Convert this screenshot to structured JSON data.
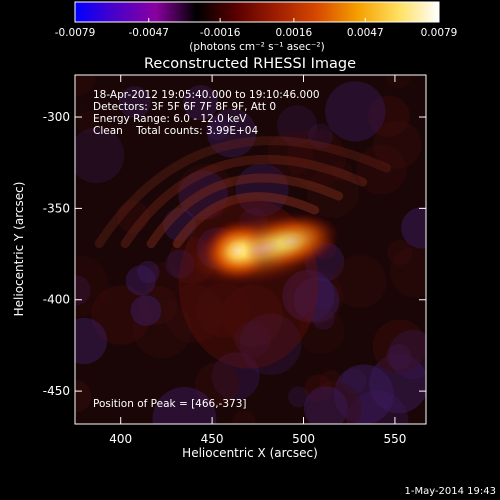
{
  "colorbar": {
    "ticks": [
      "-0.0079",
      "-0.0047",
      "-0.0016",
      "0.0016",
      "0.0047",
      "0.0079"
    ],
    "tick_values": [
      -0.0079,
      -0.0047,
      -0.0016,
      0.0016,
      0.0047,
      0.0079
    ],
    "range": [
      -0.0079,
      0.0079
    ],
    "unit_label": "(photons cm⁻² s⁻¹ asec⁻²)",
    "colors": [
      "#0000ff",
      "#4b00c8",
      "#8a00a0",
      "#000000",
      "#5a0000",
      "#a01e00",
      "#d84a00",
      "#f5a000",
      "#ffe060",
      "#ffffff"
    ]
  },
  "chart_data": {
    "type": "heatmap",
    "title": "Reconstructed RHESSI Image",
    "xlabel": "Heliocentric X (arcsec)",
    "ylabel": "Heliocentric Y (arcsec)",
    "xlim": [
      375,
      567
    ],
    "ylim": [
      -468,
      -277
    ],
    "x_ticks": [
      400,
      450,
      500,
      550
    ],
    "y_ticks": [
      -300,
      -350,
      -400,
      -450
    ],
    "info_lines": [
      "18-Apr-2012 19:05:40.000 to 19:10:46.000",
      "Detectors: 3F 5F 6F 7F 8F 9F, Att 0",
      "Energy Range: 6.0 - 12.0 keV",
      "Clean    Total counts: 3.99E+04"
    ],
    "peak_text": "Position of Peak = [466,-373]",
    "peak_position": [
      466,
      -373
    ],
    "sources": [
      {
        "x": 464,
        "y": -373,
        "sx": 8,
        "sy": 7,
        "amp": 0.0079
      },
      {
        "x": 493,
        "y": -368,
        "sx": 11,
        "sy": 6,
        "amp": 0.0052
      },
      {
        "x": 478,
        "y": -372,
        "sx": 18,
        "sy": 8,
        "amp": 0.0018
      }
    ]
  },
  "footer": {
    "date": "1-May-2014 19:43"
  }
}
